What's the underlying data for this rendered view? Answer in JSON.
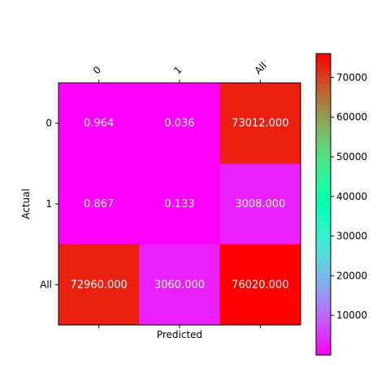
{
  "chart_data": {
    "type": "heatmap",
    "title": "",
    "xlabel": "Predicted",
    "ylabel": "Actual",
    "x_categories": [
      "0",
      "1",
      "All"
    ],
    "y_categories": [
      "0",
      "1",
      "All"
    ],
    "values": [
      [
        0.964,
        0.036,
        73012.0
      ],
      [
        0.867,
        0.133,
        3008.0
      ],
      [
        72960.0,
        3060.0,
        76020.0
      ]
    ],
    "cell_labels": [
      [
        "0.964",
        "0.036",
        "73012.000"
      ],
      [
        "0.867",
        "0.133",
        "3008.000"
      ],
      [
        "72960.000",
        "3060.000",
        "76020.000"
      ]
    ],
    "colormap": "rainbow",
    "vmin": 0.036,
    "vmax": 76020.0,
    "colorbar_ticks": [
      10000,
      20000,
      30000,
      40000,
      50000,
      60000,
      70000
    ],
    "colorbar_tick_labels": [
      "10000",
      "20000",
      "30000",
      "40000",
      "50000",
      "60000",
      "70000"
    ],
    "annotation_color": "#ffffff",
    "grid": false,
    "x_tick_label_rotation_deg": 45
  }
}
